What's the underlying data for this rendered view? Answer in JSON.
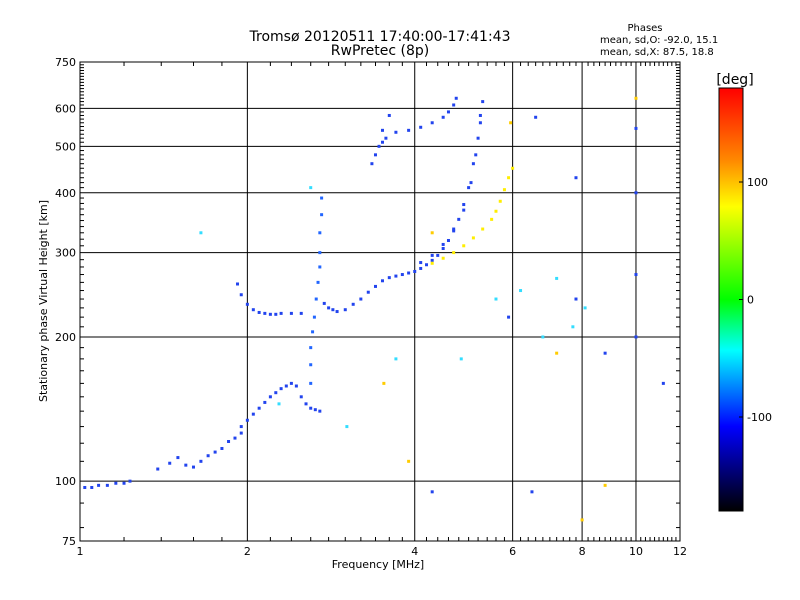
{
  "chart_data": {
    "type": "scatter",
    "title": "Tromsø 20120511 17:40:00-17:41:43",
    "subtitle": "RwPretec (8p)",
    "xlabel": "Frequency [MHz]",
    "ylabel": "Stationary phase Virtual Height [km]",
    "x_scale": "log",
    "y_scale": "log",
    "xlim": [
      1,
      12
    ],
    "ylim": [
      75,
      750
    ],
    "x_ticks": [
      1,
      2,
      4,
      6,
      8,
      10,
      12
    ],
    "x_tick_labels": [
      "1",
      "2",
      "4",
      "6",
      "8",
      "10",
      "12"
    ],
    "y_ticks": [
      75,
      100,
      200,
      300,
      400,
      500,
      600,
      750
    ],
    "y_tick_labels": [
      "75",
      "100",
      "200",
      "300",
      "400",
      "500",
      "600",
      "750"
    ],
    "grid": true,
    "phases_box": {
      "title": "Phases",
      "line1": "mean, sd,O: -92.0, 15.1",
      "line2": "mean, sd,X: 87.5, 18.8"
    },
    "colorbar": {
      "label": "[deg]",
      "range": [
        -180,
        180
      ],
      "ticks": [
        100,
        0,
        -100
      ],
      "tick_labels": [
        "100",
        "0",
        "-100"
      ],
      "colors": [
        "#ff0000",
        "#ff8800",
        "#ffff00",
        "#00ff00",
        "#00ffff",
        "#0000ff",
        "#000000"
      ]
    },
    "series": [
      {
        "color": "#2244ee",
        "points": [
          [
            1.02,
            97
          ],
          [
            1.05,
            97
          ],
          [
            1.08,
            98
          ],
          [
            1.12,
            98
          ],
          [
            1.16,
            99
          ],
          [
            1.2,
            99
          ],
          [
            1.23,
            100
          ]
        ]
      },
      {
        "color": "#2244ee",
        "points": [
          [
            1.38,
            106
          ],
          [
            1.45,
            109
          ],
          [
            1.5,
            112
          ],
          [
            1.55,
            108
          ],
          [
            1.6,
            107
          ],
          [
            1.65,
            110
          ],
          [
            1.7,
            113
          ],
          [
            1.75,
            115
          ],
          [
            1.8,
            117
          ],
          [
            1.85,
            121
          ],
          [
            1.9,
            123
          ],
          [
            1.95,
            126
          ]
        ]
      },
      {
        "color": "#2244ee",
        "points": [
          [
            1.95,
            130
          ],
          [
            2.0,
            134
          ],
          [
            2.05,
            138
          ],
          [
            2.1,
            142
          ],
          [
            2.15,
            146
          ],
          [
            2.2,
            150
          ],
          [
            2.25,
            153
          ],
          [
            2.3,
            156
          ],
          [
            2.35,
            158
          ],
          [
            2.4,
            160
          ],
          [
            2.45,
            158
          ],
          [
            2.5,
            150
          ],
          [
            2.55,
            145
          ],
          [
            2.6,
            142
          ],
          [
            2.65,
            141
          ],
          [
            2.7,
            140
          ]
        ]
      },
      {
        "color": "#2244ee",
        "points": [
          [
            1.92,
            258
          ],
          [
            1.95,
            245
          ],
          [
            2.0,
            234
          ],
          [
            2.05,
            228
          ],
          [
            2.1,
            225
          ],
          [
            2.15,
            224
          ],
          [
            2.2,
            223
          ],
          [
            2.25,
            223
          ],
          [
            2.3,
            224
          ],
          [
            2.4,
            224
          ],
          [
            2.5,
            224
          ]
        ]
      },
      {
        "color": "#2266ff",
        "points": [
          [
            2.6,
            160
          ],
          [
            2.6,
            175
          ],
          [
            2.6,
            190
          ],
          [
            2.62,
            205
          ],
          [
            2.64,
            220
          ],
          [
            2.66,
            240
          ],
          [
            2.68,
            260
          ],
          [
            2.7,
            280
          ],
          [
            2.7,
            300
          ],
          [
            2.7,
            330
          ],
          [
            2.72,
            360
          ],
          [
            2.72,
            390
          ]
        ]
      },
      {
        "color": "#2244ee",
        "points": [
          [
            2.75,
            235
          ],
          [
            2.8,
            230
          ],
          [
            2.85,
            228
          ],
          [
            2.9,
            226
          ],
          [
            3.0,
            228
          ],
          [
            3.1,
            234
          ],
          [
            3.2,
            240
          ],
          [
            3.3,
            248
          ],
          [
            3.4,
            255
          ],
          [
            3.5,
            262
          ],
          [
            3.6,
            266
          ],
          [
            3.7,
            268
          ],
          [
            3.8,
            270
          ],
          [
            3.9,
            272
          ],
          [
            4.0,
            274
          ],
          [
            4.1,
            278
          ],
          [
            4.2,
            283
          ],
          [
            4.3,
            289
          ],
          [
            4.4,
            296
          ],
          [
            4.5,
            306
          ],
          [
            4.6,
            318
          ],
          [
            4.7,
            333
          ],
          [
            4.8,
            352
          ],
          [
            4.9,
            378
          ],
          [
            5.0,
            410
          ],
          [
            5.1,
            460
          ],
          [
            5.2,
            520
          ],
          [
            5.25,
            580
          ],
          [
            5.3,
            620
          ]
        ]
      },
      {
        "color": "#2244ee",
        "points": [
          [
            4.1,
            286
          ],
          [
            4.3,
            296
          ],
          [
            4.5,
            312
          ],
          [
            4.7,
            336
          ],
          [
            4.9,
            368
          ],
          [
            5.05,
            420
          ],
          [
            5.15,
            480
          ],
          [
            5.25,
            560
          ]
        ]
      },
      {
        "color": "#ffee00",
        "points": [
          [
            4.3,
            285
          ],
          [
            4.5,
            292
          ],
          [
            4.7,
            300
          ],
          [
            4.9,
            310
          ],
          [
            5.1,
            322
          ],
          [
            5.3,
            336
          ],
          [
            5.5,
            352
          ],
          [
            5.6,
            366
          ],
          [
            5.7,
            384
          ],
          [
            5.8,
            406
          ],
          [
            5.9,
            430
          ],
          [
            6.0,
            450
          ]
        ]
      },
      {
        "color": "#2244ee",
        "points": [
          [
            3.5,
            540
          ],
          [
            3.7,
            535
          ],
          [
            3.9,
            540
          ],
          [
            4.1,
            548
          ],
          [
            4.3,
            560
          ],
          [
            4.5,
            575
          ],
          [
            4.6,
            590
          ],
          [
            4.7,
            610
          ],
          [
            4.75,
            630
          ]
        ]
      },
      {
        "color": "#2244ee",
        "points": [
          [
            3.35,
            460
          ],
          [
            3.4,
            480
          ],
          [
            3.45,
            500
          ],
          [
            3.5,
            510
          ],
          [
            3.55,
            520
          ],
          [
            3.6,
            580
          ]
        ]
      },
      {
        "color": "#33ddff",
        "points": [
          [
            1.65,
            330
          ],
          [
            2.28,
            145
          ],
          [
            2.6,
            410
          ],
          [
            3.02,
            130
          ],
          [
            3.7,
            180
          ],
          [
            4.85,
            180
          ],
          [
            5.6,
            240
          ],
          [
            6.2,
            250
          ],
          [
            6.8,
            200
          ],
          [
            7.2,
            265
          ],
          [
            7.7,
            210
          ],
          [
            8.1,
            230
          ]
        ]
      },
      {
        "color": "#2244ee",
        "points": [
          [
            4.3,
            95
          ],
          [
            6.5,
            95
          ],
          [
            7.8,
            240
          ],
          [
            7.8,
            430
          ],
          [
            8.8,
            185
          ],
          [
            10.0,
            545
          ],
          [
            10.0,
            270
          ],
          [
            10.0,
            400
          ],
          [
            10.0,
            200
          ],
          [
            11.2,
            160
          ],
          [
            6.6,
            575
          ],
          [
            5.9,
            220
          ]
        ]
      },
      {
        "color": "#ffcc00",
        "points": [
          [
            3.52,
            160
          ],
          [
            3.9,
            110
          ],
          [
            4.3,
            330
          ],
          [
            8.0,
            83
          ],
          [
            8.8,
            98
          ],
          [
            10.0,
            630
          ],
          [
            7.2,
            185
          ],
          [
            5.95,
            560
          ]
        ]
      }
    ]
  }
}
